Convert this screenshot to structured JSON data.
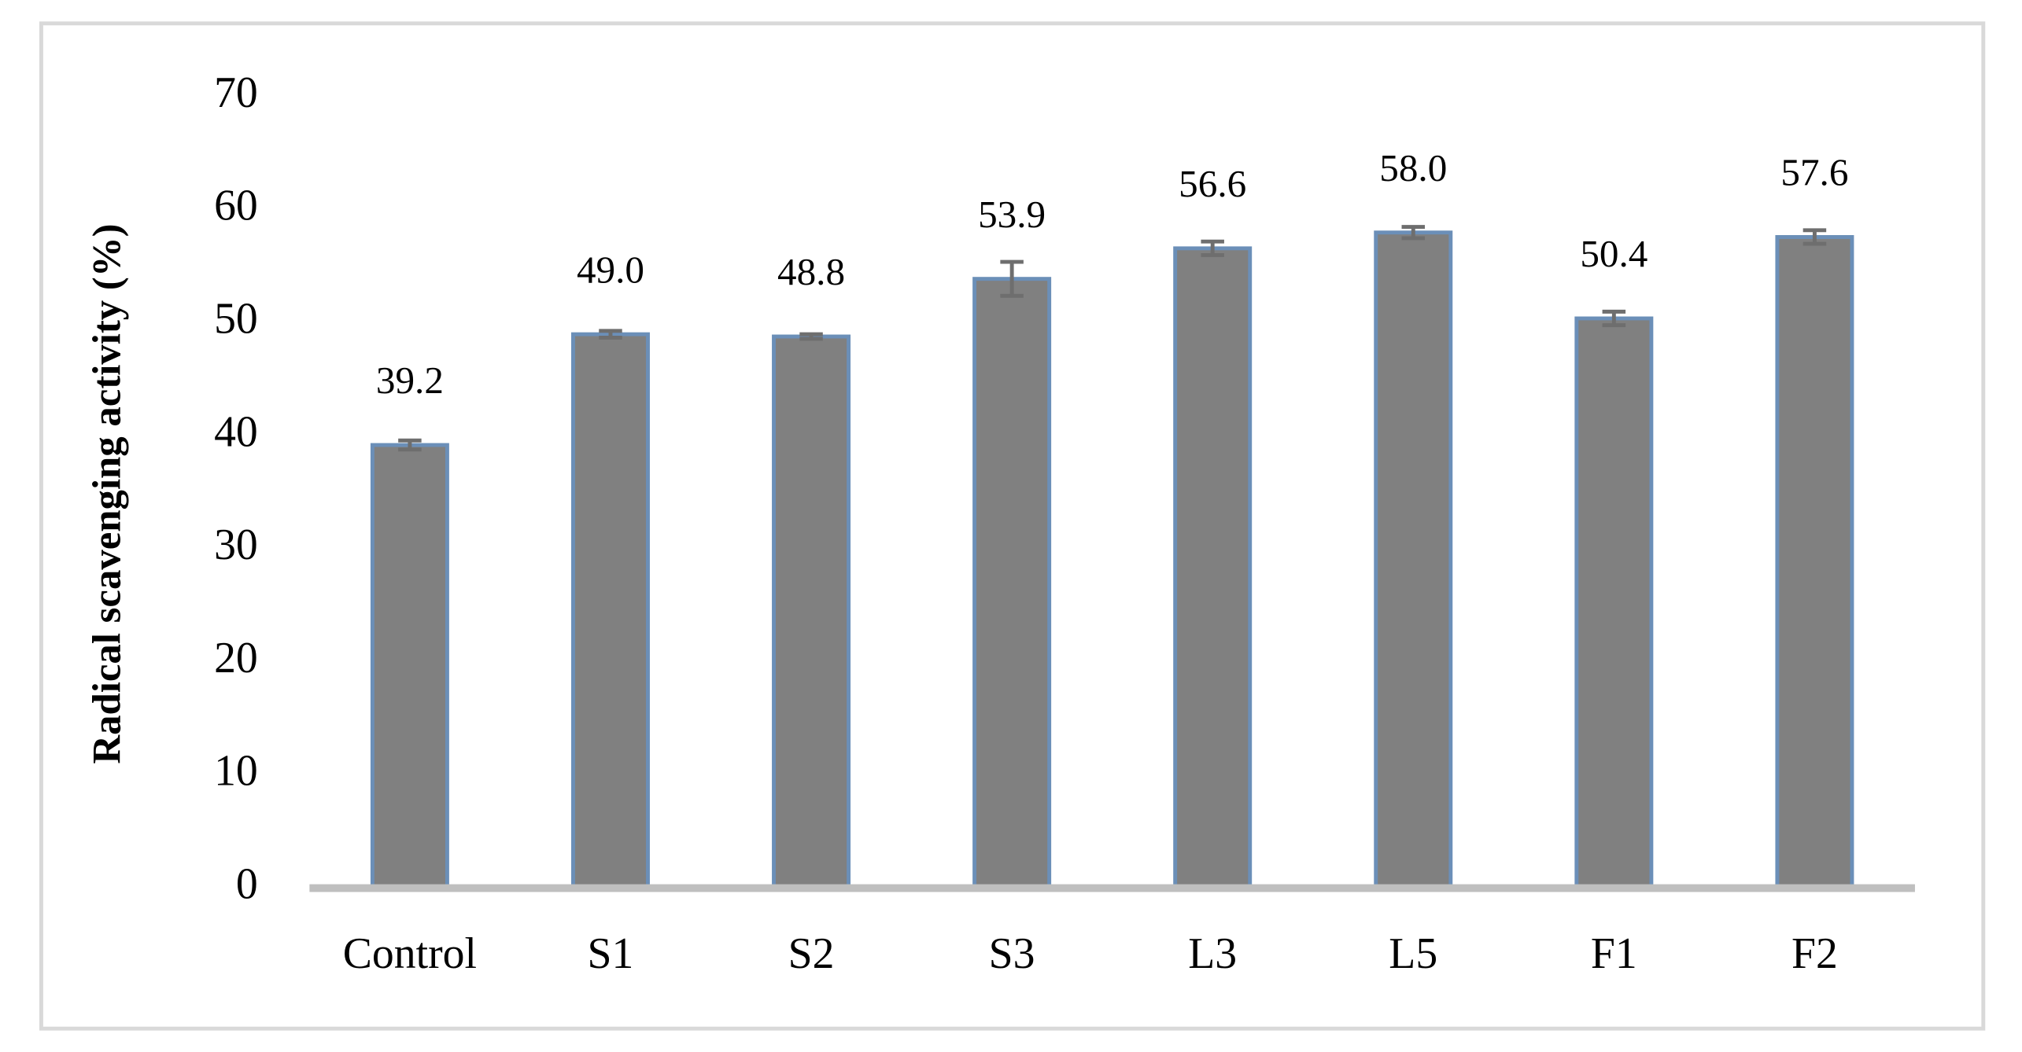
{
  "chart_data": {
    "type": "bar",
    "y_label": "Radical scavenging activity (%)",
    "categories": [
      "Control",
      "S1",
      "S2",
      "S3",
      "L3",
      "L5",
      "F1",
      "F2"
    ],
    "values": [
      39.2,
      49.0,
      48.8,
      53.9,
      56.6,
      58.0,
      50.4,
      57.6
    ],
    "value_labels": [
      "39.2",
      "49.0",
      "48.8",
      "53.9",
      "56.6",
      "58.0",
      "50.4",
      "57.6"
    ],
    "errors": [
      0.4,
      0.3,
      0.2,
      1.5,
      0.6,
      0.5,
      0.6,
      0.6
    ],
    "color": "#808080",
    "edge_color": "#6b8fb8",
    "error_color": "#6e6e6e",
    "ylim": [
      0,
      70
    ],
    "yticks": [
      0,
      10,
      20,
      30,
      40,
      50,
      60,
      70
    ],
    "grid": false
  }
}
